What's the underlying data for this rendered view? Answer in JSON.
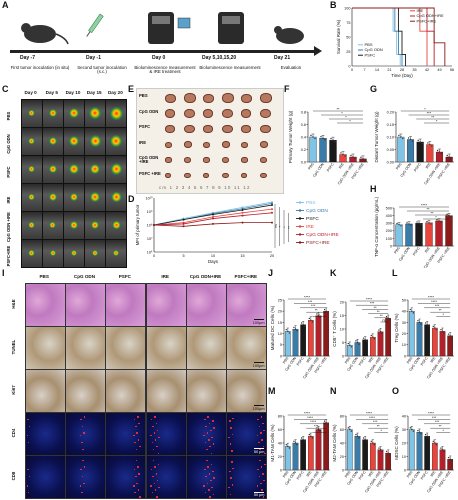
{
  "panel_letters": [
    "A",
    "B",
    "C",
    "D",
    "E",
    "F",
    "G",
    "H",
    "I",
    "J",
    "K",
    "L",
    "M",
    "N",
    "O"
  ],
  "panelA": {
    "steps": [
      {
        "day": "Day -7",
        "desc": "First tumor inoculation (in situ)"
      },
      {
        "day": "Day -1",
        "desc": "Second tumor inoculation (s.c.)"
      },
      {
        "day": "Day 0",
        "desc": "Bioluminescence measurement & IRE treatment"
      },
      {
        "day": "Day 5,10,15,20",
        "desc": "Bioluminescence measurement"
      },
      {
        "day": "Day 21",
        "desc": "Evaluation"
      }
    ]
  },
  "panelC": {
    "days": [
      "Day 0",
      "Day 5",
      "Day 10",
      "Day 15",
      "Day 20"
    ],
    "groups": [
      "PBS",
      "CpG ODN",
      "PSFC",
      "IRE",
      "CpG ODN +IRE",
      "PSFC+IRE"
    ]
  },
  "panelE": {
    "groups": [
      "PBS",
      "CpG ODN",
      "PSFC",
      "IRE",
      "CpG ODN +IRE",
      "PSFC +IRE"
    ],
    "ruler_label": "cm 1 2 3 4 5 6 7 8 9 10 11 12"
  },
  "panelI": {
    "columns": [
      "PBS",
      "CpG ODN",
      "PSFC",
      "IRE",
      "CpG ODN+IRE",
      "PSFC+IRE"
    ],
    "rows": [
      "H&E",
      "TUNEL",
      "Ki67",
      "CD4",
      "CD8"
    ],
    "scale_bars": [
      "100μm",
      "100μm",
      "100μm",
      "50 μm",
      "50 μm"
    ]
  },
  "colors": {
    "PBS": "#7fc3e6",
    "CpG ODN": "#3a7ba8",
    "PSFC": "#1a1a1a",
    "IRE": "#e8453c",
    "CpG ODN+IRE": "#b51f2a",
    "PSFC+IRE": "#8b1a1a"
  },
  "chart_data": [
    {
      "id": "B",
      "type": "line",
      "ylabel": "Survival Rate (%)",
      "xlabel": "Time (Day)",
      "ylim": [
        0,
        100
      ],
      "yticks": [
        "0",
        "25",
        "50",
        "75",
        "100"
      ],
      "xticks": [
        "0",
        "7",
        "14",
        "21",
        "28",
        "35",
        "42",
        "49",
        "56"
      ],
      "legend": [
        "PBS",
        "CpG ODN",
        "PSFC",
        "IRE",
        "CpG ODN+IRE",
        "PSFC+IRE"
      ],
      "series": [
        {
          "name": "PBS",
          "x": [
            0,
            21,
            23,
            25,
            27
          ],
          "y": [
            100,
            100,
            60,
            20,
            0
          ]
        },
        {
          "name": "CpG ODN",
          "x": [
            0,
            22,
            24,
            26,
            28
          ],
          "y": [
            100,
            100,
            60,
            20,
            0
          ]
        },
        {
          "name": "PSFC",
          "x": [
            0,
            24,
            26,
            28,
            30
          ],
          "y": [
            100,
            100,
            60,
            20,
            0
          ]
        },
        {
          "name": "IRE",
          "x": [
            0,
            35,
            38,
            42
          ],
          "y": [
            100,
            100,
            60,
            0
          ]
        },
        {
          "name": "CpG ODN+IRE",
          "x": [
            0,
            38,
            42,
            46
          ],
          "y": [
            100,
            100,
            60,
            0
          ]
        },
        {
          "name": "PSFC+IRE",
          "x": [
            0,
            42,
            46,
            52
          ],
          "y": [
            100,
            100,
            40,
            0
          ]
        }
      ]
    },
    {
      "id": "D",
      "type": "line",
      "ylabel": "MFI of primary tumor",
      "xlabel": "Days",
      "xticks": [
        "0",
        "5",
        "10",
        "15",
        "20"
      ],
      "yticks": [
        "10⁶",
        "10⁷",
        "10⁸",
        "10⁹",
        "10¹⁰"
      ],
      "legend": [
        "PBS",
        "CpG ODN",
        "PSFC",
        "IRE",
        "CpG ODN+IRE",
        "PSFC+IRE"
      ],
      "significance": [
        "ns",
        "*",
        "*",
        "**"
      ],
      "series": [
        {
          "name": "PBS",
          "x": [
            0,
            5,
            10,
            15,
            20
          ],
          "y": [
            100000000.0,
            300000000.0,
            800000000.0,
            2000000000.0,
            5000000000.0
          ]
        },
        {
          "name": "CpG ODN",
          "x": [
            0,
            5,
            10,
            15,
            20
          ],
          "y": [
            100000000.0,
            250000000.0,
            700000000.0,
            1600000000.0,
            4000000000.0
          ]
        },
        {
          "name": "PSFC",
          "x": [
            0,
            5,
            10,
            15,
            20
          ],
          "y": [
            100000000.0,
            250000000.0,
            600000000.0,
            1300000000.0,
            3000000000.0
          ]
        },
        {
          "name": "IRE",
          "x": [
            0,
            5,
            10,
            15,
            20
          ],
          "y": [
            100000000.0,
            150000000.0,
            400000000.0,
            800000000.0,
            1500000000.0
          ]
        },
        {
          "name": "CpG ODN+IRE",
          "x": [
            0,
            5,
            10,
            15,
            20
          ],
          "y": [
            100000000.0,
            120000000.0,
            300000000.0,
            500000000.0,
            800000000.0
          ]
        },
        {
          "name": "PSFC+IRE",
          "x": [
            0,
            5,
            10,
            15,
            20
          ],
          "y": [
            100000000.0,
            80000000.0,
            120000000.0,
            150000000.0,
            150000000.0
          ]
        }
      ]
    },
    {
      "id": "F",
      "type": "bar",
      "ylabel": "Primary Tumor Weight (g)",
      "categories": [
        "PBS",
        "CpG ODN",
        "PSFC",
        "IRE",
        "CpG ODN +IRE",
        "PSFC +IRE"
      ],
      "values": [
        0.4,
        0.38,
        0.35,
        0.12,
        0.08,
        0.05
      ],
      "ylim": [
        0,
        0.8
      ],
      "yticks": [
        "0.0",
        "0.2",
        "0.4",
        "0.6",
        "0.8"
      ],
      "sig": [
        "**",
        "*",
        "*",
        "*"
      ]
    },
    {
      "id": "G",
      "type": "bar",
      "ylabel": "Distant Tumor Weight (g)",
      "categories": [
        "PBS",
        "CpG ODN",
        "PSFC",
        "IRE",
        "CpG ODN +IRE",
        "PSFC +IRE"
      ],
      "values": [
        0.1,
        0.09,
        0.08,
        0.07,
        0.04,
        0.02
      ],
      "ylim": [
        0,
        0.2
      ],
      "yticks": [
        "0.00",
        "0.05",
        "0.10",
        "0.15",
        "0.20"
      ],
      "sig": [
        "*",
        "***",
        "**",
        "*"
      ]
    },
    {
      "id": "H",
      "type": "bar",
      "ylabel": "TNF-α Concentration (pg/mL)",
      "categories": [
        "PBS",
        "CpG ODN",
        "PSFC",
        "IRE",
        "CpG ODN +IRE",
        "PSFC +IRE"
      ],
      "values": [
        280,
        290,
        300,
        305,
        330,
        400
      ],
      "ylim": [
        0,
        500
      ],
      "yticks": [
        "0",
        "100",
        "200",
        "300",
        "400",
        "500"
      ],
      "sig": [
        "****",
        "**",
        "**",
        "*"
      ]
    },
    {
      "id": "J",
      "type": "bar",
      "ylabel": "Matured DC Cells (%)",
      "categories": [
        "PBS",
        "CpG ODN",
        "PSFC",
        "IRE",
        "CpG ODN +IRE",
        "PSFC +IRE"
      ],
      "values": [
        11,
        12,
        14,
        16,
        18,
        20
      ],
      "ylim": [
        0,
        25
      ],
      "yticks": [
        "0",
        "5",
        "10",
        "15",
        "20",
        "25"
      ],
      "sig": [
        "****",
        "***",
        "***",
        "**",
        "*"
      ]
    },
    {
      "id": "K",
      "type": "bar",
      "ylabel": "CD8⁺ T Cells (%)",
      "categories": [
        "PBS",
        "CpG ODN",
        "PSFC",
        "IRE",
        "CpG ODN +IRE",
        "PSFC +IRE"
      ],
      "values": [
        4,
        5,
        6,
        7,
        9,
        14
      ],
      "ylim": [
        0,
        20
      ],
      "yticks": [
        "0",
        "5",
        "10",
        "15",
        "20"
      ],
      "sig": [
        "****",
        "***",
        "**",
        "**",
        "**",
        "ns"
      ]
    },
    {
      "id": "L",
      "type": "bar",
      "ylabel": "Treg Cells (%)",
      "categories": [
        "PBS",
        "CpG ODN",
        "PSFC",
        "IRE",
        "CpG ODN +IRE",
        "PSFC +IRE"
      ],
      "values": [
        40,
        30,
        28,
        25,
        22,
        18
      ],
      "ylim": [
        0,
        50
      ],
      "yticks": [
        "0",
        "10",
        "20",
        "30",
        "40",
        "50"
      ],
      "sig": [
        "****",
        "****",
        "***",
        "**",
        "*"
      ]
    },
    {
      "id": "M",
      "type": "bar",
      "ylabel": "M1-TAM Cells (%)",
      "categories": [
        "PBS",
        "CpG ODN",
        "PSFC",
        "IRE",
        "CpG ODN +IRE",
        "PSFC +IRE"
      ],
      "values": [
        35,
        40,
        45,
        50,
        60,
        70
      ],
      "ylim": [
        0,
        80
      ],
      "yticks": [
        "0",
        "20",
        "40",
        "60",
        "80"
      ],
      "sig": [
        "****",
        "****",
        "****",
        "***",
        "**"
      ]
    },
    {
      "id": "N",
      "type": "bar",
      "ylabel": "M2-TAM Cells (%)",
      "categories": [
        "PBS",
        "CpG ODN",
        "PSFC",
        "IRE",
        "CpG ODN +IRE",
        "PSFC +IRE"
      ],
      "values": [
        60,
        50,
        45,
        40,
        30,
        25
      ],
      "ylim": [
        0,
        80
      ],
      "yticks": [
        "0",
        "20",
        "40",
        "60",
        "80"
      ],
      "sig": [
        "****",
        "****",
        "***",
        "**",
        "*"
      ]
    },
    {
      "id": "O",
      "type": "bar",
      "ylabel": "MDSC Cells (%)",
      "categories": [
        "PBS",
        "CpG ODN",
        "PSFC",
        "IRE",
        "CpG ODN +IRE",
        "PSFC +IRE"
      ],
      "values": [
        30,
        28,
        25,
        20,
        15,
        8
      ],
      "ylim": [
        0,
        40
      ],
      "yticks": [
        "0",
        "10",
        "20",
        "30",
        "40"
      ],
      "sig": [
        "****",
        "***",
        "***",
        "**",
        "*"
      ]
    }
  ]
}
